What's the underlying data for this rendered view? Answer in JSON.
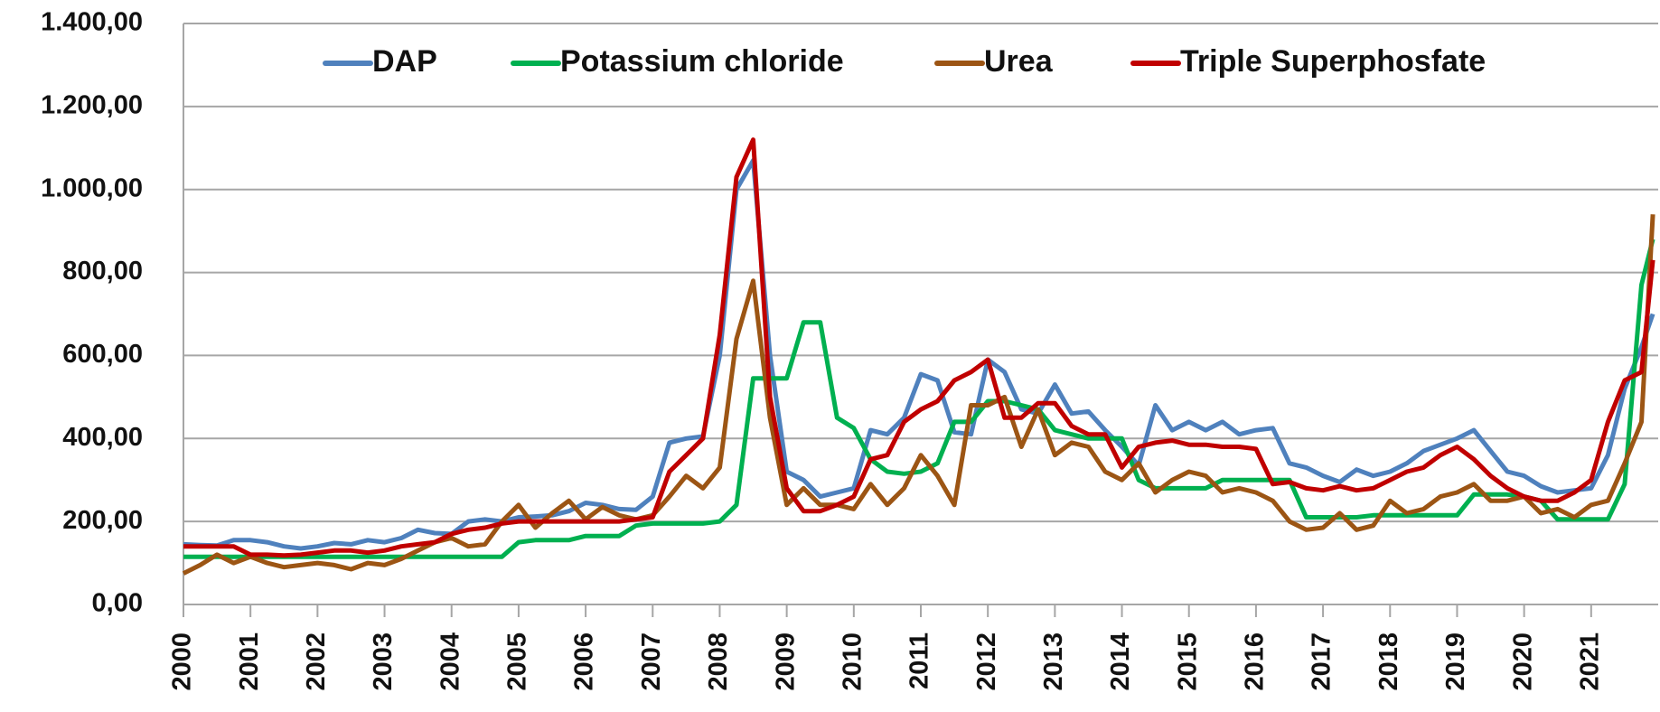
{
  "chart_data": {
    "type": "line",
    "x": [
      2000,
      2000.25,
      2000.5,
      2000.75,
      2001,
      2001.25,
      2001.5,
      2001.75,
      2002,
      2002.25,
      2002.5,
      2002.75,
      2003,
      2003.25,
      2003.5,
      2003.75,
      2004,
      2004.25,
      2004.5,
      2004.75,
      2005,
      2005.25,
      2005.5,
      2005.75,
      2006,
      2006.25,
      2006.5,
      2006.75,
      2007,
      2007.25,
      2007.5,
      2007.75,
      2008,
      2008.25,
      2008.5,
      2008.75,
      2009,
      2009.25,
      2009.5,
      2009.75,
      2010,
      2010.25,
      2010.5,
      2010.75,
      2011,
      2011.25,
      2011.5,
      2011.75,
      2012,
      2012.25,
      2012.5,
      2012.75,
      2013,
      2013.25,
      2013.5,
      2013.75,
      2014,
      2014.25,
      2014.5,
      2014.75,
      2015,
      2015.25,
      2015.5,
      2015.75,
      2016,
      2016.25,
      2016.5,
      2016.75,
      2017,
      2017.25,
      2017.5,
      2017.75,
      2018,
      2018.25,
      2018.5,
      2018.75,
      2019,
      2019.25,
      2019.5,
      2019.75,
      2020,
      2020.25,
      2020.5,
      2020.75,
      2021,
      2021.25,
      2021.5,
      2021.75,
      2021.92
    ],
    "series": [
      {
        "name": "DAP",
        "color": "#4f81bd",
        "values": [
          145,
          143,
          142,
          155,
          155,
          150,
          140,
          135,
          140,
          148,
          145,
          155,
          150,
          160,
          180,
          172,
          170,
          200,
          205,
          200,
          210,
          212,
          215,
          225,
          245,
          240,
          230,
          228,
          260,
          390,
          400,
          405,
          600,
          1000,
          1070,
          600,
          320,
          300,
          260,
          270,
          280,
          420,
          410,
          450,
          555,
          540,
          415,
          410,
          590,
          560,
          470,
          460,
          530,
          460,
          465,
          420,
          380,
          335,
          480,
          420,
          440,
          420,
          440,
          410,
          420,
          425,
          340,
          330,
          310,
          295,
          325,
          310,
          320,
          340,
          370,
          385,
          400,
          420,
          370,
          320,
          310,
          285,
          270,
          275,
          280,
          360,
          520,
          620,
          700
        ]
      },
      {
        "name": "Potassium chloride",
        "color": "#00b050",
        "values": [
          115,
          115,
          115,
          115,
          115,
          115,
          115,
          115,
          115,
          115,
          115,
          115,
          115,
          115,
          115,
          115,
          115,
          115,
          115,
          115,
          150,
          155,
          155,
          155,
          165,
          165,
          165,
          190,
          195,
          195,
          195,
          195,
          200,
          240,
          545,
          545,
          545,
          680,
          680,
          450,
          425,
          350,
          320,
          315,
          320,
          340,
          440,
          440,
          490,
          490,
          480,
          470,
          420,
          410,
          400,
          400,
          400,
          300,
          280,
          280,
          280,
          280,
          300,
          300,
          300,
          300,
          300,
          210,
          210,
          210,
          210,
          215,
          215,
          215,
          215,
          215,
          215,
          265,
          265,
          265,
          260,
          250,
          205,
          205,
          205,
          205,
          290,
          770,
          880
        ]
      },
      {
        "name": "Urea",
        "color": "#9c5514",
        "values": [
          75,
          95,
          120,
          100,
          115,
          100,
          90,
          95,
          100,
          95,
          85,
          100,
          95,
          110,
          130,
          150,
          160,
          140,
          145,
          200,
          240,
          185,
          220,
          250,
          205,
          235,
          215,
          205,
          215,
          260,
          310,
          280,
          330,
          640,
          780,
          450,
          240,
          280,
          240,
          240,
          230,
          290,
          240,
          280,
          360,
          310,
          240,
          480,
          480,
          500,
          380,
          470,
          360,
          390,
          380,
          320,
          300,
          340,
          270,
          300,
          320,
          310,
          270,
          280,
          270,
          250,
          200,
          180,
          185,
          220,
          180,
          190,
          250,
          220,
          230,
          260,
          270,
          290,
          250,
          250,
          260,
          220,
          230,
          210,
          240,
          250,
          340,
          440,
          940
        ]
      },
      {
        "name": "Triple Superphosfate",
        "color": "#c00000",
        "values": [
          140,
          140,
          140,
          140,
          120,
          120,
          118,
          120,
          125,
          130,
          130,
          125,
          130,
          140,
          145,
          150,
          170,
          180,
          185,
          195,
          200,
          200,
          200,
          200,
          200,
          200,
          200,
          205,
          210,
          320,
          360,
          400,
          650,
          1030,
          1120,
          500,
          280,
          225,
          225,
          240,
          260,
          350,
          360,
          440,
          470,
          490,
          540,
          560,
          590,
          450,
          450,
          485,
          485,
          430,
          410,
          410,
          330,
          380,
          390,
          395,
          385,
          385,
          380,
          380,
          375,
          290,
          295,
          280,
          275,
          285,
          275,
          280,
          300,
          320,
          330,
          360,
          380,
          350,
          310,
          280,
          260,
          250,
          250,
          270,
          300,
          440,
          540,
          560,
          830
        ]
      }
    ],
    "xlim": [
      2000,
      2022
    ],
    "xticks": [
      2000,
      2001,
      2002,
      2003,
      2004,
      2005,
      2006,
      2007,
      2008,
      2009,
      2010,
      2011,
      2012,
      2013,
      2014,
      2015,
      2016,
      2017,
      2018,
      2019,
      2020,
      2021
    ],
    "ylim": [
      0,
      1400
    ],
    "yticks": [
      {
        "value": 0,
        "label": "0,00"
      },
      {
        "value": 200,
        "label": "200,00"
      },
      {
        "value": 400,
        "label": "400,00"
      },
      {
        "value": 600,
        "label": "600,00"
      },
      {
        "value": 800,
        "label": "800,00"
      },
      {
        "value": 1000,
        "label": "1.000,00"
      },
      {
        "value": 1200,
        "label": "1.200,00"
      },
      {
        "value": 1400,
        "label": "1.400,00"
      }
    ],
    "grid": true,
    "legend": "top"
  }
}
